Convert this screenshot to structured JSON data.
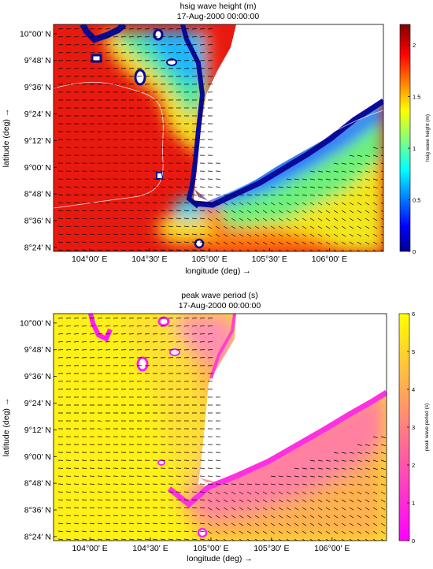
{
  "chart_data": [
    {
      "type": "heatmap",
      "title": "hsig wave height (m)",
      "subtitle": "17-Aug-2000 00:00:00",
      "xlabel": "longitude (deg) →",
      "ylabel": "latitude (deg) →",
      "colorbar_label": "hsig wave height (m)",
      "colormap": "jet",
      "colorbar_ticks": [
        0,
        0.5,
        1,
        1.5,
        2
      ],
      "colorbar_tick_labels": [
        "0",
        "0.5",
        "1",
        "1.5",
        "2"
      ],
      "clim": [
        0,
        2.2
      ],
      "x_tick_values": [
        104.0,
        104.5,
        105.0,
        105.5,
        106.0
      ],
      "x_tick_labels": [
        "104°00' E",
        "104°30' E",
        "105°00' E",
        "105°30' E",
        "106°00' E"
      ],
      "y_tick_values": [
        10.0,
        9.8,
        9.6,
        9.4,
        9.2,
        9.0,
        8.8,
        8.6,
        8.4
      ],
      "y_tick_labels": [
        "10°00' N",
        "9°48' N",
        "9°36' N",
        "9°24' N",
        "9°12' N",
        "9°00' N",
        "8°48' N",
        "8°36' N",
        "8°24' N"
      ],
      "xlim": [
        103.7,
        106.45
      ],
      "ylim": [
        8.37,
        10.07
      ],
      "grid": false,
      "legend": "none",
      "quiver": true
    },
    {
      "type": "heatmap",
      "title": "peak wave period (s)",
      "subtitle": "17-Aug-2000 00:00:00",
      "xlabel": "longitude (deg) →",
      "ylabel": "latitude (deg) →",
      "colorbar_label": "peak wave period (s)",
      "colormap": "spring",
      "colorbar_ticks": [
        0,
        1,
        2,
        3,
        4,
        5,
        6
      ],
      "colorbar_tick_labels": [
        "0",
        "1",
        "2",
        "3",
        "4",
        "5",
        "6"
      ],
      "clim": [
        0,
        6
      ],
      "x_tick_values": [
        104.0,
        104.5,
        105.0,
        105.5,
        106.0
      ],
      "x_tick_labels": [
        "104°00' E",
        "104°30' E",
        "105°00' E",
        "105°30' E",
        "106°00' E"
      ],
      "y_tick_values": [
        10.0,
        9.8,
        9.6,
        9.4,
        9.2,
        9.0,
        8.8,
        8.6,
        8.4
      ],
      "y_tick_labels": [
        "10°00' N",
        "9°48' N",
        "9°36' N",
        "9°24' N",
        "9°12' N",
        "9°00' N",
        "8°48' N",
        "8°36' N",
        "8°24' N"
      ],
      "xlim": [
        103.7,
        106.45
      ],
      "ylim": [
        8.37,
        10.07
      ],
      "grid": false,
      "legend": "none",
      "quiver": true
    }
  ]
}
